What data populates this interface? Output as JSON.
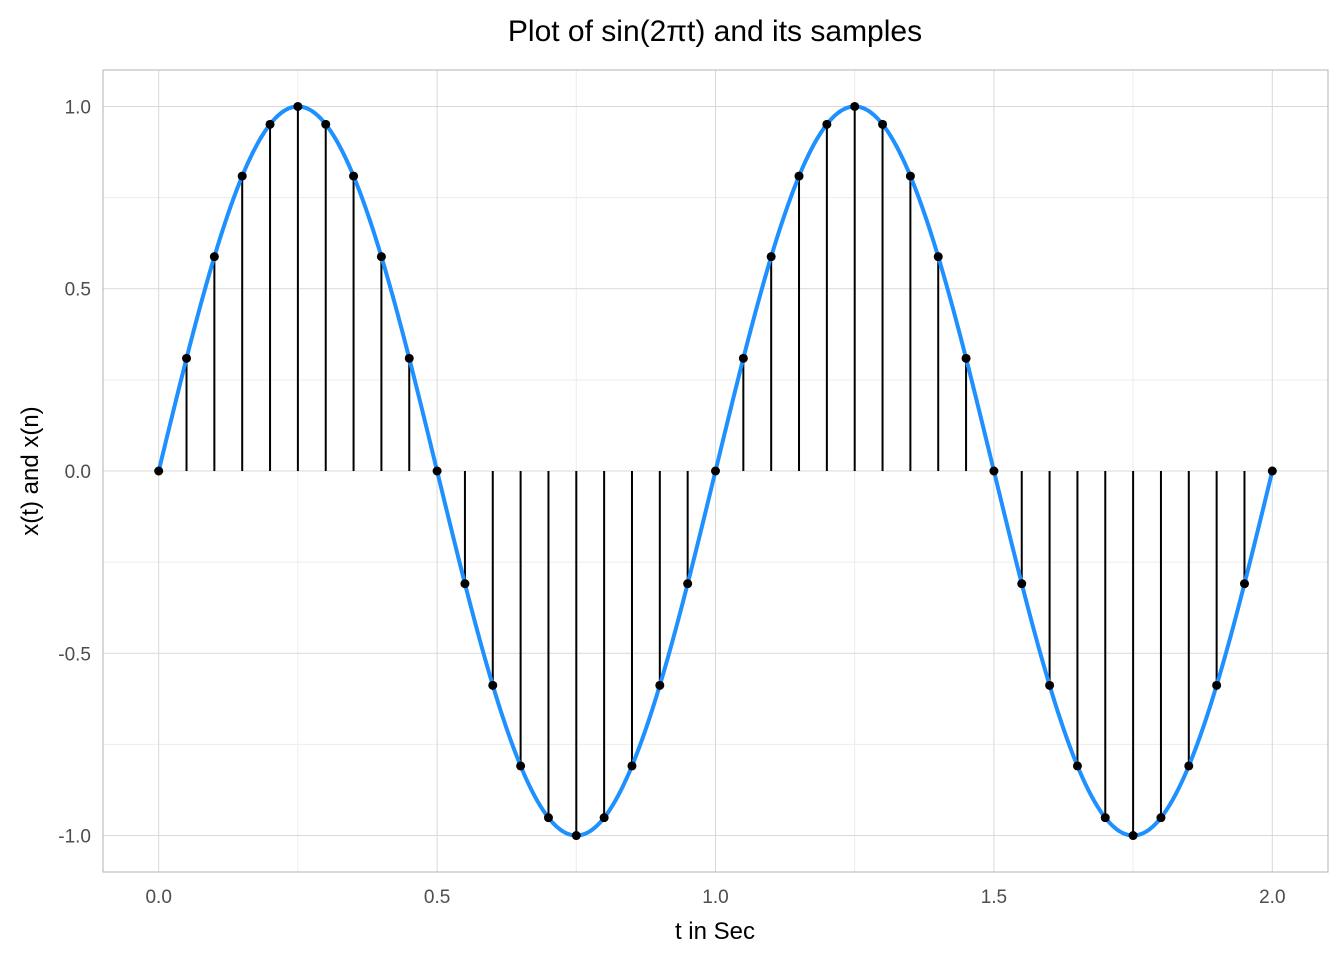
{
  "chart_data": {
    "type": "line",
    "title": "Plot of sin(2πt) and its samples",
    "xlabel": "t in Sec",
    "ylabel": "x(t) and x(n)",
    "xlim": [
      -0.1,
      2.1
    ],
    "ylim": [
      -1.1,
      1.1
    ],
    "x_ticks": [
      0.0,
      0.5,
      1.0,
      1.5,
      2.0
    ],
    "x_tick_labels": [
      "0.0",
      "0.5",
      "1.0",
      "1.5",
      "2.0"
    ],
    "y_ticks": [
      -1.0,
      -0.5,
      0.0,
      0.5,
      1.0
    ],
    "y_tick_labels": [
      "-1.0",
      "-0.5",
      "0.0",
      "0.5",
      "1.0"
    ],
    "grid": true,
    "legend": "none",
    "series": [
      {
        "type": "line",
        "color": "#1e90ff",
        "function": "sin(2*pi*t)",
        "t_range": [
          0,
          2
        ]
      },
      {
        "type": "stem",
        "color": "#000000",
        "x": [
          0.0,
          0.05,
          0.1,
          0.15,
          0.2,
          0.25,
          0.3,
          0.35,
          0.4,
          0.45,
          0.5,
          0.55,
          0.6,
          0.65,
          0.7,
          0.75,
          0.8,
          0.85,
          0.9,
          0.95,
          1.0,
          1.05,
          1.1,
          1.15,
          1.2,
          1.25,
          1.3,
          1.35,
          1.4,
          1.45,
          1.5,
          1.55,
          1.6,
          1.65,
          1.7,
          1.75,
          1.8,
          1.85,
          1.9,
          1.95,
          2.0
        ],
        "y": [
          0.0,
          0.309,
          0.588,
          0.809,
          0.951,
          1.0,
          0.951,
          0.809,
          0.588,
          0.309,
          0.0,
          -0.309,
          -0.588,
          -0.809,
          -0.951,
          -1.0,
          -0.951,
          -0.809,
          -0.588,
          -0.309,
          0.0,
          0.309,
          0.588,
          0.809,
          0.951,
          1.0,
          0.951,
          0.809,
          0.588,
          0.309,
          0.0,
          -0.309,
          -0.588,
          -0.809,
          -0.951,
          -1.0,
          -0.951,
          -0.809,
          -0.588,
          -0.309,
          0.0
        ]
      }
    ]
  }
}
